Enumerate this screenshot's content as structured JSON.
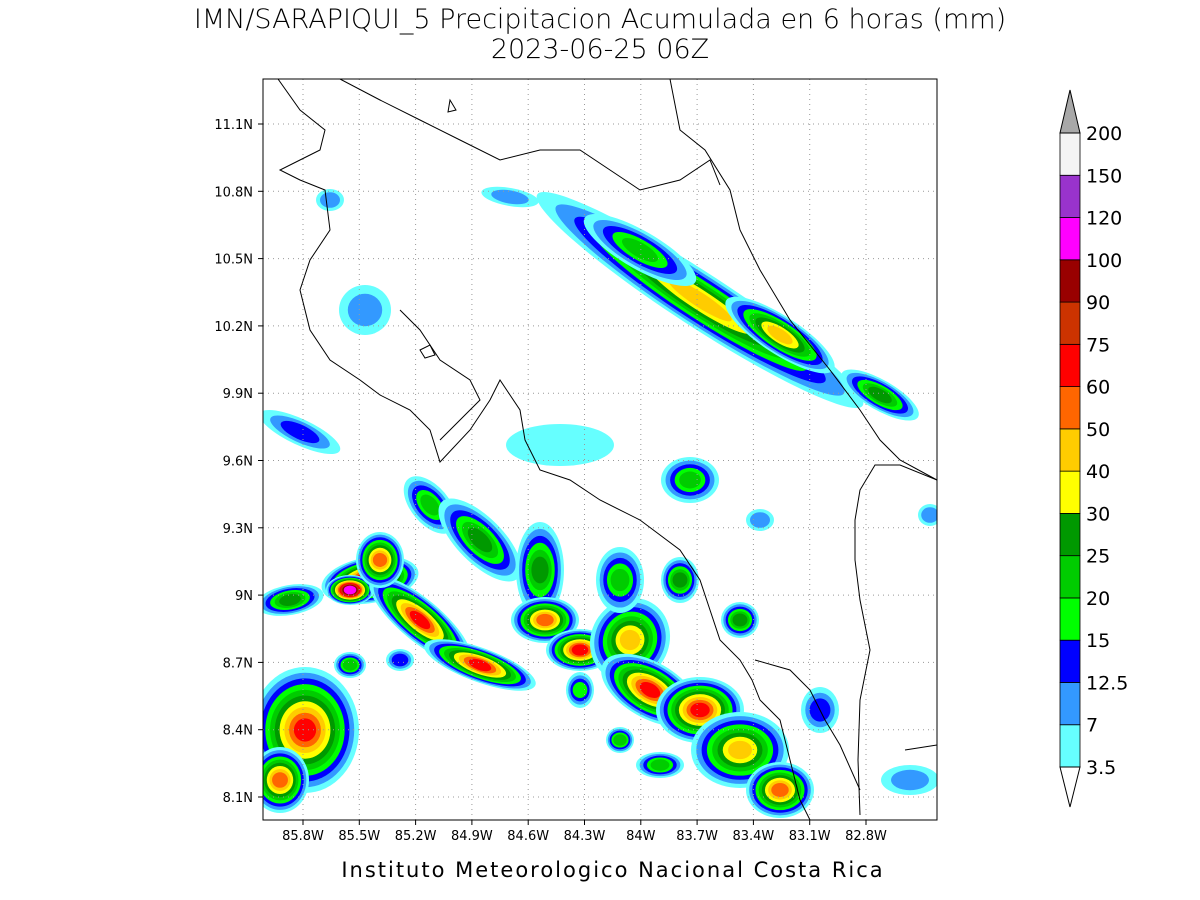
{
  "title": "IMN/SARAPIQUI_5 Precipitacion Acumulada en 6 horas (mm)",
  "subtitle": "2023-06-25 06Z",
  "lat_labels": [
    "11.1N",
    "10.8N",
    "10.5N",
    "10.2N",
    "9.9N",
    "9.6N",
    "9.3N",
    "9N",
    "8.7N",
    "8.4N",
    "8.1N"
  ],
  "lon_labels": [
    "85.8W",
    "85.5W",
    "85.2W",
    "84.9W",
    "84.6W",
    "84.3W",
    "84W",
    "83.7W",
    "83.4W",
    "83.1W",
    "82.8W"
  ],
  "legend": {
    "levels": [
      "3.5",
      "7",
      "12.5",
      "15",
      "20",
      "25",
      "30",
      "40",
      "50",
      "60",
      "75",
      "90",
      "100",
      "120",
      "150",
      "200"
    ],
    "colors": [
      "#66ffff",
      "#3399ff",
      "#0000ff",
      "#00ff00",
      "#00cc00",
      "#009900",
      "#ffff00",
      "#ffcc00",
      "#ff6600",
      "#ff0000",
      "#cc3300",
      "#990000",
      "#ff00ff",
      "#9933cc",
      "#f4f4f4"
    ],
    "under_color": "#ffffff",
    "over_color": "#a8a8a8"
  },
  "footer": "Instituto Meteorologico Nacional Costa Rica"
}
